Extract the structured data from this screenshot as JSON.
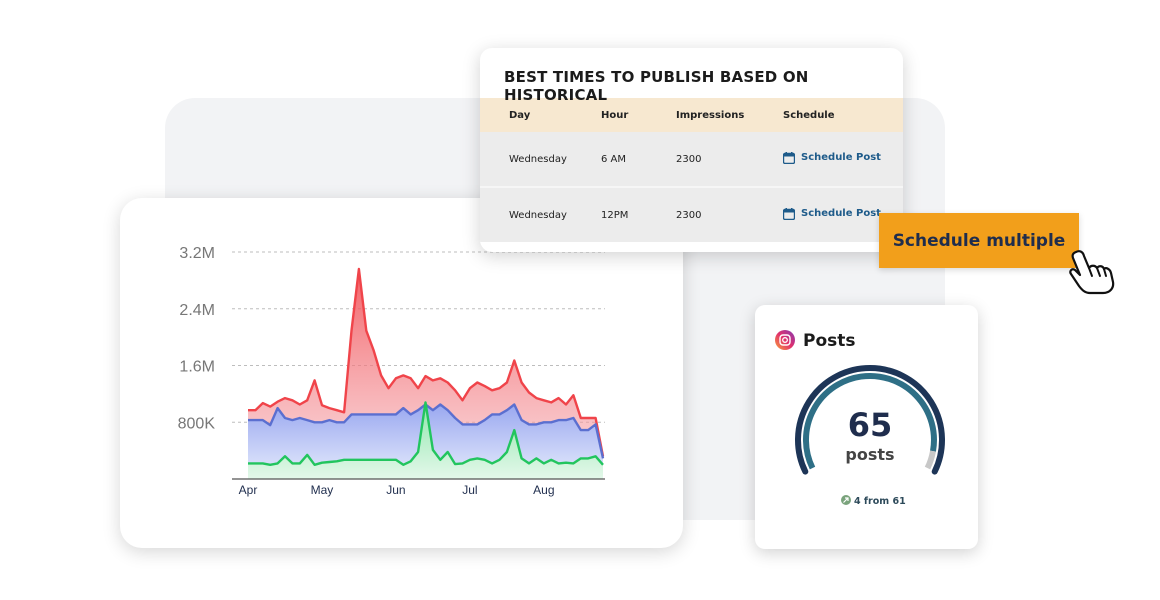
{
  "chart_data": {
    "type": "area",
    "categories": [
      "Apr",
      null,
      null,
      null,
      null,
      null,
      null,
      null,
      null,
      null,
      "May",
      null,
      null,
      null,
      null,
      null,
      null,
      null,
      null,
      null,
      "Jun",
      null,
      null,
      null,
      null,
      null,
      null,
      null,
      null,
      null,
      "Jul",
      null,
      null,
      null,
      null,
      null,
      null,
      null,
      null,
      null,
      "Aug",
      null,
      null,
      null,
      null,
      null,
      null,
      null,
      null
    ],
    "series": [
      {
        "color": "#f0444a",
        "values": [
          970000,
          970000,
          1070000,
          1020000,
          1090000,
          1140000,
          1110000,
          1050000,
          1110000,
          1390000,
          1040000,
          1000000,
          970000,
          940000,
          2090000,
          2960000,
          2090000,
          1810000,
          1460000,
          1280000,
          1420000,
          1460000,
          1420000,
          1280000,
          1450000,
          1390000,
          1420000,
          1360000,
          1250000,
          1110000,
          1280000,
          1360000,
          1310000,
          1250000,
          1280000,
          1360000,
          1670000,
          1360000,
          1220000,
          1140000,
          1110000,
          1080000,
          1140000,
          1050000,
          1180000,
          860000,
          860000,
          860000,
          320000
        ]
      },
      {
        "color": "#5b6fd0",
        "values": [
          830000,
          830000,
          830000,
          760000,
          1000000,
          860000,
          830000,
          860000,
          830000,
          800000,
          800000,
          830000,
          800000,
          800000,
          910000,
          910000,
          910000,
          910000,
          910000,
          910000,
          910000,
          1000000,
          910000,
          970000,
          1050000,
          970000,
          1050000,
          970000,
          860000,
          770000,
          770000,
          770000,
          830000,
          910000,
          910000,
          970000,
          1050000,
          830000,
          770000,
          770000,
          800000,
          800000,
          830000,
          830000,
          860000,
          690000,
          690000,
          770000,
          290000
        ]
      },
      {
        "color": "#22c55e",
        "values": [
          220000,
          220000,
          220000,
          200000,
          220000,
          320000,
          220000,
          220000,
          340000,
          200000,
          230000,
          240000,
          250000,
          270000,
          270000,
          270000,
          270000,
          270000,
          270000,
          270000,
          270000,
          200000,
          250000,
          380000,
          1080000,
          410000,
          270000,
          380000,
          210000,
          220000,
          270000,
          290000,
          270000,
          220000,
          270000,
          380000,
          690000,
          290000,
          220000,
          290000,
          220000,
          270000,
          220000,
          230000,
          220000,
          290000,
          290000,
          320000,
          200000
        ]
      }
    ],
    "ylim": [
      0,
      3200000
    ],
    "yticks": [
      {
        "value": 800000,
        "label": "800K"
      },
      {
        "value": 1600000,
        "label": "1.6M"
      },
      {
        "value": 2400000,
        "label": "2.4M"
      },
      {
        "value": 3200000,
        "label": "3.2M"
      }
    ],
    "grid": true
  },
  "table": {
    "title": "BEST TIMES TO PUBLISH BASED ON HISTORICAL",
    "columns": [
      "Day",
      "Hour",
      "Impressions",
      "Schedule"
    ],
    "rows": [
      [
        "Wednesday",
        "6 AM",
        2300,
        "Schedule Post"
      ],
      [
        "Wednesday",
        "12PM",
        2300,
        "Schedule Post"
      ]
    ]
  },
  "button": {
    "label": "Schedule multiple"
  },
  "posts_card": {
    "title": "Posts",
    "value": 65,
    "unit": "posts",
    "change": "4 from 61"
  }
}
